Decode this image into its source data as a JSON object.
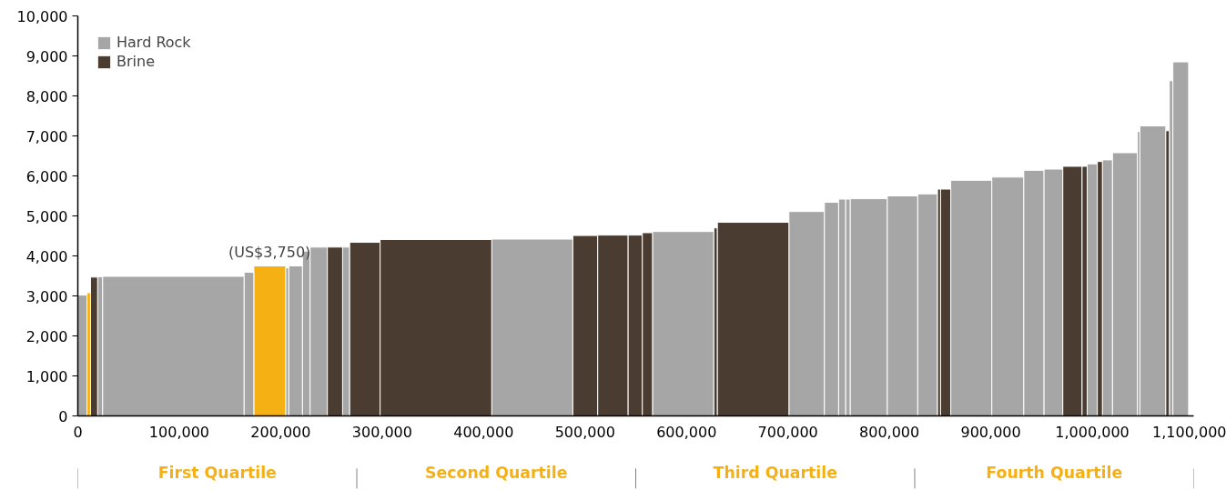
{
  "chart_data": {
    "type": "histogram",
    "bins": [
      0,
      9000,
      12500,
      19500,
      24500,
      164000,
      173500,
      205000,
      208000,
      221500,
      229000,
      246000,
      261000,
      268000,
      298000,
      408000,
      488000,
      512500,
      542500,
      556500,
      566500,
      627000,
      630500,
      701000,
      736000,
      750000,
      757000,
      761500,
      798000,
      828000,
      847500,
      850500,
      860500,
      901000,
      932500,
      952500,
      971000,
      990000,
      995000,
      1005000,
      1010000,
      1020000,
      1044500,
      1047000,
      1072500,
      1076000,
      1079500,
      1095000
    ],
    "series": [
      {
        "color": "#f5b014",
        "values": [
          null,
          3080,
          null,
          null,
          null,
          null,
          3750,
          null,
          null,
          null,
          null,
          null,
          null,
          null,
          null,
          null,
          null,
          null,
          null,
          null,
          null,
          null,
          null,
          null,
          null,
          null,
          null,
          null,
          null,
          null,
          null,
          null,
          null,
          null,
          null,
          null,
          null,
          null,
          null,
          null,
          null,
          null,
          null,
          null,
          null,
          null,
          null
        ]
      },
      {
        "name": "Hard Rock",
        "color": "#a6a6a6",
        "values": [
          3020,
          null,
          null,
          3480,
          3490,
          3590,
          null,
          3700,
          3750,
          4120,
          4220,
          null,
          4220,
          null,
          null,
          4420,
          null,
          null,
          null,
          null,
          4610,
          null,
          null,
          5110,
          5340,
          5420,
          5420,
          5430,
          5500,
          5550,
          null,
          null,
          5890,
          5970,
          6140,
          6170,
          null,
          null,
          6300,
          null,
          6400,
          6580,
          7110,
          7250,
          null,
          8380,
          8850
        ]
      },
      {
        "name": "Brine",
        "color": "#4a3c30",
        "values": [
          null,
          null,
          3470,
          null,
          null,
          null,
          null,
          null,
          null,
          null,
          null,
          4220,
          null,
          4340,
          4410,
          null,
          4510,
          4520,
          4520,
          4580,
          null,
          4700,
          4840,
          null,
          null,
          null,
          null,
          null,
          null,
          null,
          5670,
          5670,
          null,
          null,
          null,
          null,
          6240,
          6240,
          null,
          6360,
          null,
          null,
          null,
          null,
          7130,
          null,
          null
        ]
      }
    ],
    "xlim": [
      0,
      1100000
    ],
    "xticks": [
      0,
      {
        "value": 100000,
        "label": "100,000"
      },
      {
        "value": 200000,
        "label": "200,000"
      },
      {
        "value": 300000,
        "label": "300,000"
      },
      {
        "value": 400000,
        "label": "400,000"
      },
      {
        "value": 500000,
        "label": "500,000"
      },
      {
        "value": 600000,
        "label": "600,000"
      },
      {
        "value": 700000,
        "label": "700,000"
      },
      {
        "value": 800000,
        "label": "800,000"
      },
      {
        "value": 900000,
        "label": "900,000"
      },
      {
        "value": 1000000,
        "label": "1,000,000"
      },
      {
        "value": 1100000,
        "label": "1,100,000"
      }
    ],
    "ylim": [
      0,
      10000
    ],
    "yticks": [
      0,
      {
        "value": 1000,
        "label": "1,000"
      },
      {
        "value": 2000,
        "label": "2,000"
      },
      {
        "value": 3000,
        "label": "3,000"
      },
      {
        "value": 4000,
        "label": "4,000"
      },
      {
        "value": 5000,
        "label": "5,000"
      },
      {
        "value": 6000,
        "label": "6,000"
      },
      {
        "value": 7000,
        "label": "7,000"
      },
      {
        "value": 8000,
        "label": "8,000"
      },
      {
        "value": 9000,
        "label": "9,000"
      },
      {
        "value": 10000,
        "label": "10,000"
      }
    ],
    "annotations": [
      {
        "text": "(US$3,750)",
        "x": 189000,
        "y": 3750
      },
      "First Quartile",
      "Second Quartile",
      "Third Quartile",
      "Fourth Quartile"
    ],
    "grid": false,
    "legend": "top left"
  }
}
